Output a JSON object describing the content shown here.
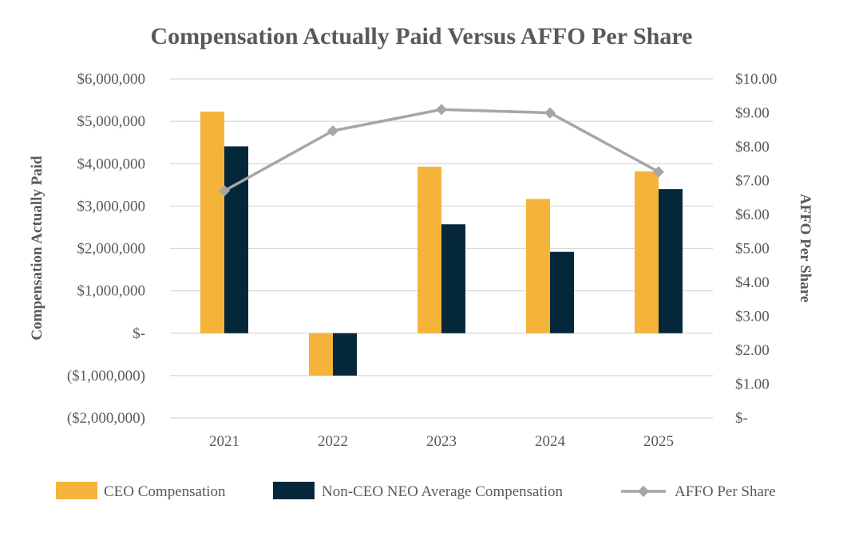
{
  "chart_data": {
    "type": "bar+line",
    "title": "Compensation Actually Paid Versus AFFO Per Share",
    "categories": [
      "2021",
      "2022",
      "2023",
      "2024",
      "2025"
    ],
    "series": [
      {
        "name": "CEO Compensation",
        "axis": "left",
        "kind": "bar",
        "color": "#F4B43A",
        "values": [
          5230000,
          -1000000,
          3930000,
          3170000,
          3820000
        ]
      },
      {
        "name": "Non-CEO NEO Average Compensation",
        "axis": "left",
        "kind": "bar",
        "color": "#04283A",
        "values": [
          4410000,
          -1000000,
          2570000,
          1920000,
          3400000
        ]
      },
      {
        "name": "AFFO Per Share",
        "axis": "right",
        "kind": "line",
        "color": "#A6A6A6",
        "values": [
          6.7,
          8.47,
          9.1,
          9.0,
          7.26
        ]
      }
    ],
    "ylabel_left": "Compensation Actually Paid",
    "ylabel_right": "AFFO Per Share",
    "ylim_left": [
      -2000000,
      6000000
    ],
    "ylim_right": [
      0,
      10
    ],
    "yticks_left": [
      "$6,000,000",
      "$5,000,000",
      "$4,000,000",
      "$3,000,000",
      "$2,000,000",
      "$1,000,000",
      "$-",
      "($1,000,000)",
      "($2,000,000)"
    ],
    "yticks_right": [
      "$10.00",
      "$9.00",
      "$8.00",
      "$7.00",
      "$6.00",
      "$5.00",
      "$4.00",
      "$3.00",
      "$2.00",
      "$1.00",
      "$-"
    ],
    "grid": true,
    "legend_position": "bottom"
  }
}
